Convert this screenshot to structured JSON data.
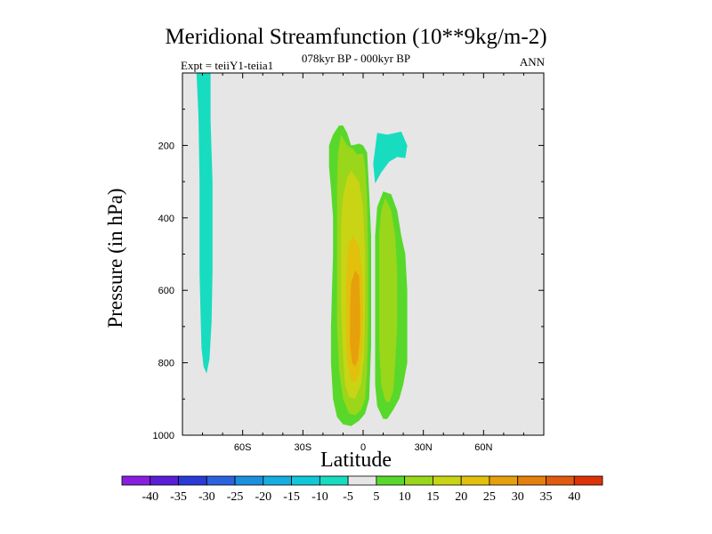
{
  "chart_data": {
    "type": "heatmap",
    "title": "Meridional Streamfunction (10**9kg/m-2)",
    "subtitle": "078kyr BP - 000kyr BP",
    "left_string": "Expt = teiiY1-teiia1",
    "right_string": "ANN",
    "xlabel": "Latitude",
    "ylabel": "Pressure (in hPa)",
    "xlim": [
      -90,
      90
    ],
    "ylim": [
      1000,
      0
    ],
    "y_reversed": true,
    "x_ticks": [
      {
        "value": -60,
        "label": "60S"
      },
      {
        "value": -30,
        "label": "30S"
      },
      {
        "value": 0,
        "label": "0"
      },
      {
        "value": 30,
        "label": "30N"
      },
      {
        "value": 60,
        "label": "60N"
      }
    ],
    "y_ticks": [
      {
        "value": 200,
        "label": "200"
      },
      {
        "value": 400,
        "label": "400"
      },
      {
        "value": 600,
        "label": "600"
      },
      {
        "value": 800,
        "label": "800"
      },
      {
        "value": 1000,
        "label": "1000"
      }
    ],
    "missing_color": "#e6e6e6",
    "contour_levels": [
      -40,
      -35,
      -30,
      -25,
      -20,
      -15,
      -10,
      -5,
      5,
      10,
      15,
      20,
      25,
      30,
      35,
      40
    ],
    "colorbar_colors": [
      "#8a1ee0",
      "#5a1ed8",
      "#2a3ad8",
      "#2b62e0",
      "#1a90e0",
      "#16aee0",
      "#10c8d8",
      "#18dcc0",
      "#e6e6e6",
      "#58d82a",
      "#9ad61a",
      "#c8d414",
      "#e2c00c",
      "#e6a00c",
      "#e6800c",
      "#e05a10",
      "#dc3208"
    ],
    "regions": [
      {
        "color": "#18dcc0",
        "points": [
          [
            -83,
            0
          ],
          [
            -76,
            0
          ],
          [
            -76,
            130
          ],
          [
            -75,
            300
          ],
          [
            -75,
            550
          ],
          [
            -75.5,
            690
          ],
          [
            -76.5,
            790
          ],
          [
            -78,
            830
          ],
          [
            -79.5,
            810
          ],
          [
            -80.5,
            760
          ],
          [
            -81,
            660
          ],
          [
            -81.5,
            550
          ],
          [
            -81.5,
            300
          ],
          [
            -82,
            120
          ]
        ]
      },
      {
        "color": "#18dcc0",
        "points": [
          [
            7,
            165
          ],
          [
            12,
            170
          ],
          [
            19,
            162
          ],
          [
            22,
            200
          ],
          [
            21,
            235
          ],
          [
            17,
            232
          ],
          [
            13,
            245
          ],
          [
            9,
            275
          ],
          [
            6,
            305
          ],
          [
            5,
            250
          ]
        ]
      },
      {
        "color": "#58d82a",
        "points": [
          [
            -12,
            145
          ],
          [
            -10,
            145
          ],
          [
            -8,
            165
          ],
          [
            -6,
            200
          ],
          [
            -4,
            198
          ],
          [
            -2,
            195
          ],
          [
            0,
            200
          ],
          [
            2,
            220
          ],
          [
            3,
            330
          ],
          [
            4,
            450
          ],
          [
            4,
            600
          ],
          [
            4,
            750
          ],
          [
            3,
            900
          ],
          [
            1,
            940
          ],
          [
            -2,
            960
          ],
          [
            -6,
            975
          ],
          [
            -10,
            970
          ],
          [
            -13,
            950
          ],
          [
            -15,
            900
          ],
          [
            -16,
            800
          ],
          [
            -16,
            700
          ],
          [
            -15.5,
            600
          ],
          [
            -15,
            500
          ],
          [
            -15,
            400
          ],
          [
            -16,
            320
          ],
          [
            -17,
            260
          ],
          [
            -17,
            200
          ],
          [
            -15,
            170
          ]
        ]
      },
      {
        "color": "#58d82a",
        "points": [
          [
            10,
            327
          ],
          [
            14,
            335
          ],
          [
            17,
            380
          ],
          [
            19,
            450
          ],
          [
            21,
            500
          ],
          [
            22,
            600
          ],
          [
            22,
            700
          ],
          [
            22,
            800
          ],
          [
            20,
            860
          ],
          [
            18,
            900
          ],
          [
            15,
            930
          ],
          [
            12,
            955
          ],
          [
            10,
            955
          ],
          [
            7,
            920
          ],
          [
            6,
            860
          ],
          [
            6,
            800
          ],
          [
            6,
            700
          ],
          [
            6,
            600
          ],
          [
            6,
            500
          ],
          [
            6,
            450
          ],
          [
            7,
            370
          ]
        ]
      },
      {
        "color": "#9ad61a",
        "points": [
          [
            -11,
            170
          ],
          [
            -8,
            200
          ],
          [
            -5,
            210
          ],
          [
            -3,
            225
          ],
          [
            0,
            222
          ],
          [
            1,
            260
          ],
          [
            2,
            350
          ],
          [
            2.5,
            500
          ],
          [
            2.5,
            700
          ],
          [
            2,
            820
          ],
          [
            1,
            900
          ],
          [
            -1,
            930
          ],
          [
            -4,
            945
          ],
          [
            -7,
            940
          ],
          [
            -10,
            900
          ],
          [
            -12,
            820
          ],
          [
            -13,
            700
          ],
          [
            -13,
            600
          ],
          [
            -13,
            500
          ],
          [
            -13,
            400
          ],
          [
            -13,
            300
          ],
          [
            -12.5,
            220
          ]
        ]
      },
      {
        "color": "#9ad61a",
        "points": [
          [
            11,
            345
          ],
          [
            14,
            380
          ],
          [
            16,
            450
          ],
          [
            17,
            550
          ],
          [
            17,
            700
          ],
          [
            16,
            800
          ],
          [
            15,
            880
          ],
          [
            13,
            910
          ],
          [
            11,
            905
          ],
          [
            9,
            860
          ],
          [
            8,
            750
          ],
          [
            8,
            600
          ],
          [
            8,
            450
          ],
          [
            9,
            380
          ]
        ]
      },
      {
        "color": "#c8d414",
        "points": [
          [
            -6,
            270
          ],
          [
            -2,
            300
          ],
          [
            0,
            370
          ],
          [
            1,
            500
          ],
          [
            1,
            650
          ],
          [
            0.5,
            780
          ],
          [
            -1,
            860
          ],
          [
            -4,
            900
          ],
          [
            -7,
            895
          ],
          [
            -9,
            860
          ],
          [
            -10,
            780
          ],
          [
            -11,
            650
          ],
          [
            -11,
            500
          ],
          [
            -11,
            420
          ],
          [
            -10,
            340
          ],
          [
            -8,
            290
          ]
        ]
      },
      {
        "color": "#e2c00c",
        "points": [
          [
            -5,
            450
          ],
          [
            -2,
            480
          ],
          [
            -0.5,
            560
          ],
          [
            0,
            660
          ],
          [
            -0.5,
            760
          ],
          [
            -2,
            830
          ],
          [
            -4,
            855
          ],
          [
            -6,
            850
          ],
          [
            -8,
            790
          ],
          [
            -8.5,
            700
          ],
          [
            -8.5,
            600
          ],
          [
            -8,
            520
          ],
          [
            -7,
            470
          ]
        ]
      },
      {
        "color": "#e6a00c",
        "points": [
          [
            -4,
            545
          ],
          [
            -2,
            560
          ],
          [
            -1.5,
            640
          ],
          [
            -1.5,
            720
          ],
          [
            -2.5,
            790
          ],
          [
            -4,
            810
          ],
          [
            -5.5,
            800
          ],
          [
            -6.5,
            750
          ],
          [
            -6.5,
            650
          ],
          [
            -6,
            580
          ]
        ]
      }
    ]
  }
}
